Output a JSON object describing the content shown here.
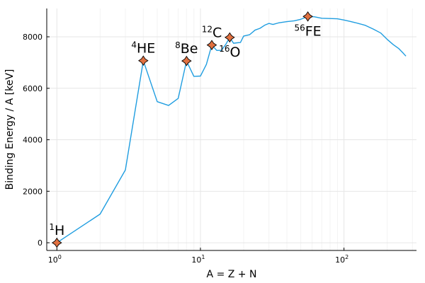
{
  "chart_data": {
    "type": "line",
    "xlabel": "A = Z + N",
    "ylabel": "Binding Energy / A [keV]",
    "xscale": "log10",
    "xlim": [
      0.85,
      320
    ],
    "ylim": [
      -300,
      9100
    ],
    "grid": true,
    "legend": "none",
    "line_color": "#1f9de0",
    "marker_color": "#e07040",
    "x_ticks": [
      {
        "value": 1,
        "base": "10",
        "exp": "0"
      },
      {
        "value": 10,
        "base": "10",
        "exp": "1"
      },
      {
        "value": 100,
        "base": "10",
        "exp": "2"
      }
    ],
    "y_ticks": [
      {
        "value": 0,
        "label": "0"
      },
      {
        "value": 2000,
        "label": "2000"
      },
      {
        "value": 4000,
        "label": "4000"
      },
      {
        "value": 6000,
        "label": "6000"
      },
      {
        "value": 8000,
        "label": "8000"
      }
    ],
    "series": [
      {
        "x": [
          1,
          2,
          3,
          4,
          5,
          6,
          7,
          8,
          9,
          10,
          11,
          12,
          13,
          14,
          15,
          16,
          17,
          18,
          19,
          20,
          22,
          24,
          26,
          28,
          30,
          32,
          35,
          40,
          45,
          50,
          56,
          62,
          70,
          80,
          90,
          100,
          110,
          120,
          140,
          160,
          180,
          200,
          220,
          240,
          260,
          270
        ],
        "y": [
          0,
          1112,
          2827,
          7074,
          5480,
          5332,
          5606,
          7062,
          6463,
          6475,
          6928,
          7680,
          7470,
          7476,
          7700,
          7976,
          7750,
          7767,
          7780,
          8030,
          8080,
          8260,
          8330,
          8450,
          8520,
          8480,
          8540,
          8590,
          8620,
          8680,
          8790,
          8780,
          8720,
          8710,
          8700,
          8650,
          8600,
          8550,
          8450,
          8300,
          8150,
          7900,
          7700,
          7550,
          7350,
          7250
        ]
      }
    ],
    "points": [
      {
        "x": 1,
        "y": 0,
        "label_sup": "1",
        "label": "H",
        "pos": "above"
      },
      {
        "x": 4,
        "y": 7074,
        "label_sup": "4",
        "label": "HE",
        "pos": "above"
      },
      {
        "x": 8,
        "y": 7062,
        "label_sup": "8",
        "label": "Be",
        "pos": "above"
      },
      {
        "x": 12,
        "y": 7680,
        "label_sup": "12",
        "label": "C",
        "pos": "above"
      },
      {
        "x": 16,
        "y": 7976,
        "label_sup": "16",
        "label": "O",
        "pos": "below"
      },
      {
        "x": 56,
        "y": 8790,
        "label_sup": "56",
        "label": "FE",
        "pos": "below"
      }
    ]
  }
}
